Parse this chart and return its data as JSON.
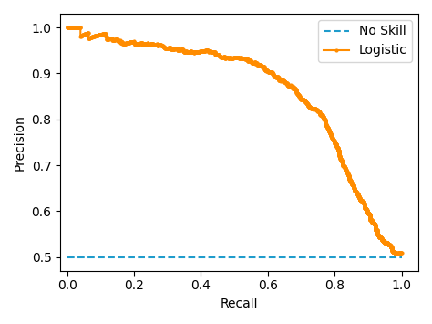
{
  "no_skill_color": "#1f9ccc",
  "no_skill_linestyle": "--",
  "no_skill_label": "No Skill",
  "no_skill_value": 0.5,
  "logistic_color": "#ff8c00",
  "logistic_marker": "o",
  "logistic_markersize": 2,
  "logistic_linewidth": 1.5,
  "logistic_label": "Logistic",
  "xlabel": "Recall",
  "ylabel": "Precision",
  "xlim": [
    -0.02,
    1.05
  ],
  "ylim": [
    0.47,
    1.03
  ],
  "figsize": [
    4.74,
    3.55
  ],
  "dpi": 100,
  "random_state": 1,
  "legend_loc": "upper right"
}
